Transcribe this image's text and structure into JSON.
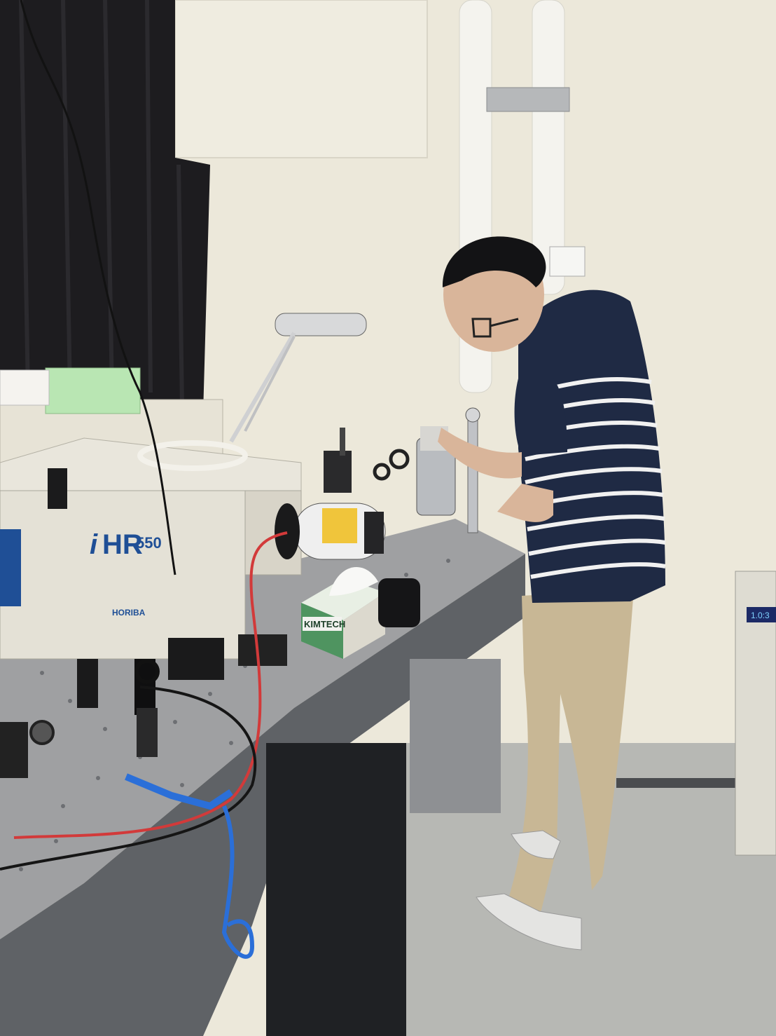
{
  "scene": {
    "instrument_brand_i": "i",
    "instrument_brand_hr": "HR",
    "instrument_model_num": "550",
    "manufacturer": "HORIBA",
    "tissue_box_brand": "KIMTECH",
    "controller_display": "1.0:3"
  },
  "colors": {
    "wall": "#ece8da",
    "curtain": "#1d1c1f",
    "table_top": "#9fa0a2",
    "table_side": "#5f6266",
    "instrument_body": "#e4e1d6",
    "shirt_navy": "#1f2a44",
    "pants_khaki": "#c8b795",
    "floor": "#b9bab6",
    "red_cable": "#d23a3a",
    "blue_cable": "#2b6fd8"
  }
}
